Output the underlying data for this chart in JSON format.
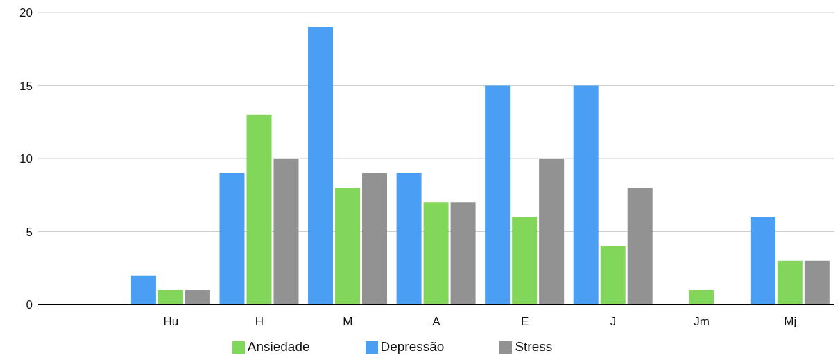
{
  "chart_data": {
    "type": "bar",
    "categories": [
      null,
      "Hu",
      "H",
      "M",
      "A",
      "E",
      "J",
      "Jm",
      "Mj"
    ],
    "series": [
      {
        "name": "Depressão",
        "color": "#4a9ff5",
        "values": [
          null,
          2,
          9,
          19,
          9,
          15,
          15,
          0,
          6
        ]
      },
      {
        "name": "Ansiedade",
        "color": "#82d65a",
        "values": [
          null,
          1,
          13,
          8,
          7,
          6,
          4,
          1,
          3
        ]
      },
      {
        "name": "Stress",
        "color": "#929292",
        "values": [
          null,
          1,
          10,
          9,
          7,
          10,
          8,
          0,
          3
        ]
      }
    ],
    "ylim": [
      0,
      20
    ],
    "yticks": [
      0,
      5,
      10,
      15,
      20
    ],
    "grid": "y",
    "legend": "bottom"
  }
}
